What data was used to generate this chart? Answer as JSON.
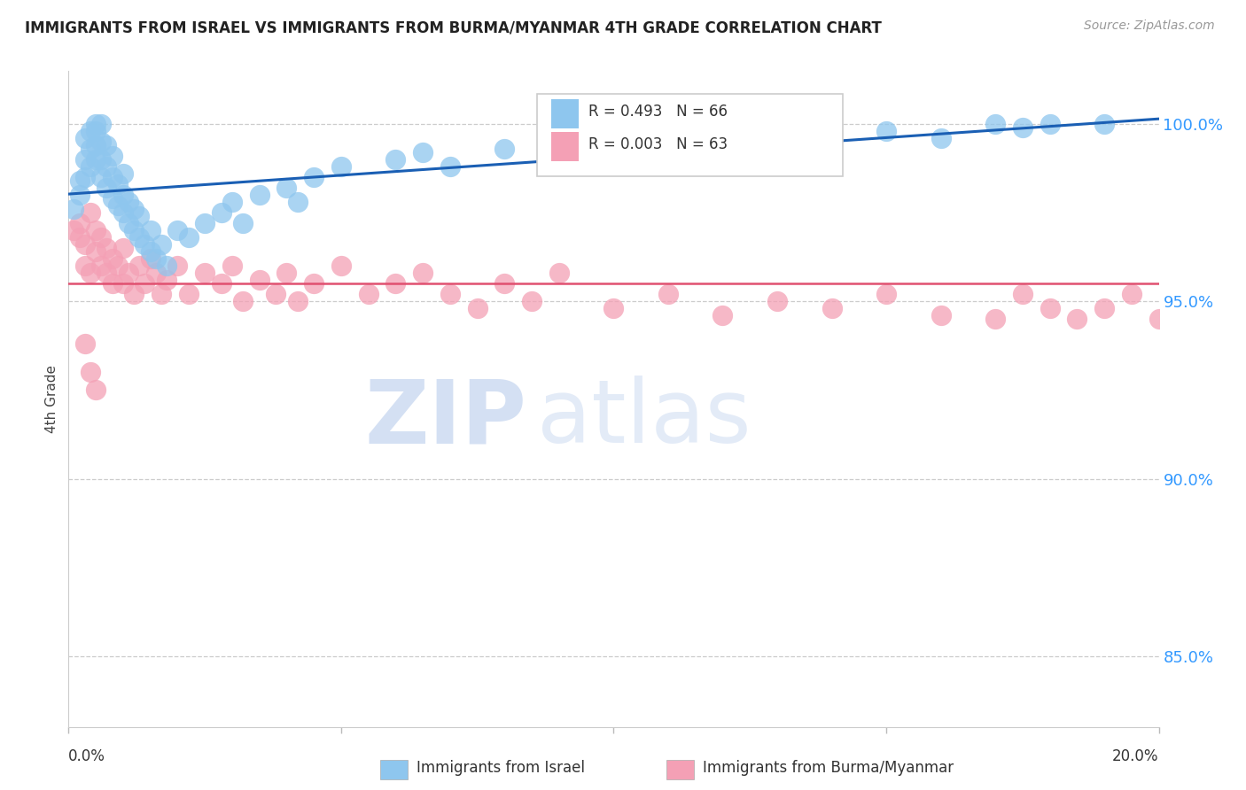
{
  "title": "IMMIGRANTS FROM ISRAEL VS IMMIGRANTS FROM BURMA/MYANMAR 4TH GRADE CORRELATION CHART",
  "source": "Source: ZipAtlas.com",
  "ylabel": "4th Grade",
  "xlim": [
    0.0,
    0.2
  ],
  "ylim": [
    0.83,
    1.015
  ],
  "yticks": [
    0.85,
    0.9,
    0.95,
    1.0
  ],
  "ytick_labels": [
    "85.0%",
    "90.0%",
    "95.0%",
    "100.0%"
  ],
  "israel_R": 0.493,
  "israel_N": 66,
  "burma_R": 0.003,
  "burma_N": 63,
  "israel_color": "#8EC6EE",
  "burma_color": "#F4A0B5",
  "israel_line_color": "#1a5fb4",
  "burma_line_color": "#E05070",
  "legend_israel": "Immigrants from Israel",
  "legend_burma": "Immigrants from Burma/Myanmar",
  "watermark_zip": "ZIP",
  "watermark_atlas": "atlas",
  "israel_x": [
    0.001,
    0.002,
    0.002,
    0.003,
    0.003,
    0.003,
    0.004,
    0.004,
    0.004,
    0.005,
    0.005,
    0.005,
    0.005,
    0.006,
    0.006,
    0.006,
    0.006,
    0.007,
    0.007,
    0.007,
    0.008,
    0.008,
    0.008,
    0.009,
    0.009,
    0.01,
    0.01,
    0.01,
    0.011,
    0.011,
    0.012,
    0.012,
    0.013,
    0.013,
    0.014,
    0.015,
    0.015,
    0.016,
    0.017,
    0.018,
    0.02,
    0.022,
    0.025,
    0.028,
    0.03,
    0.032,
    0.035,
    0.04,
    0.042,
    0.045,
    0.05,
    0.06,
    0.065,
    0.07,
    0.08,
    0.09,
    0.1,
    0.11,
    0.12,
    0.13,
    0.15,
    0.16,
    0.17,
    0.175,
    0.18,
    0.19
  ],
  "israel_y": [
    0.976,
    0.98,
    0.984,
    0.985,
    0.99,
    0.996,
    0.988,
    0.993,
    0.998,
    0.99,
    0.994,
    0.998,
    1.0,
    0.985,
    0.99,
    0.995,
    1.0,
    0.982,
    0.988,
    0.994,
    0.979,
    0.985,
    0.991,
    0.977,
    0.983,
    0.975,
    0.98,
    0.986,
    0.972,
    0.978,
    0.97,
    0.976,
    0.968,
    0.974,
    0.966,
    0.964,
    0.97,
    0.962,
    0.966,
    0.96,
    0.97,
    0.968,
    0.972,
    0.975,
    0.978,
    0.972,
    0.98,
    0.982,
    0.978,
    0.985,
    0.988,
    0.99,
    0.992,
    0.988,
    0.993,
    0.994,
    0.996,
    0.994,
    0.997,
    0.998,
    0.998,
    0.996,
    1.0,
    0.999,
    1.0,
    1.0
  ],
  "burma_x": [
    0.001,
    0.002,
    0.002,
    0.003,
    0.003,
    0.004,
    0.004,
    0.005,
    0.005,
    0.006,
    0.006,
    0.007,
    0.007,
    0.008,
    0.008,
    0.009,
    0.01,
    0.01,
    0.011,
    0.012,
    0.013,
    0.014,
    0.015,
    0.016,
    0.017,
    0.018,
    0.02,
    0.022,
    0.025,
    0.028,
    0.03,
    0.032,
    0.035,
    0.038,
    0.04,
    0.042,
    0.045,
    0.05,
    0.055,
    0.06,
    0.065,
    0.07,
    0.075,
    0.08,
    0.085,
    0.09,
    0.1,
    0.11,
    0.12,
    0.13,
    0.14,
    0.15,
    0.16,
    0.17,
    0.175,
    0.18,
    0.185,
    0.19,
    0.195,
    0.2,
    0.003,
    0.004,
    0.005
  ],
  "burma_y": [
    0.97,
    0.968,
    0.972,
    0.966,
    0.96,
    0.975,
    0.958,
    0.964,
    0.97,
    0.96,
    0.968,
    0.958,
    0.965,
    0.955,
    0.962,
    0.96,
    0.965,
    0.955,
    0.958,
    0.952,
    0.96,
    0.955,
    0.962,
    0.958,
    0.952,
    0.956,
    0.96,
    0.952,
    0.958,
    0.955,
    0.96,
    0.95,
    0.956,
    0.952,
    0.958,
    0.95,
    0.955,
    0.96,
    0.952,
    0.955,
    0.958,
    0.952,
    0.948,
    0.955,
    0.95,
    0.958,
    0.948,
    0.952,
    0.946,
    0.95,
    0.948,
    0.952,
    0.946,
    0.945,
    0.952,
    0.948,
    0.945,
    0.948,
    0.952,
    0.945,
    0.938,
    0.93,
    0.925
  ]
}
